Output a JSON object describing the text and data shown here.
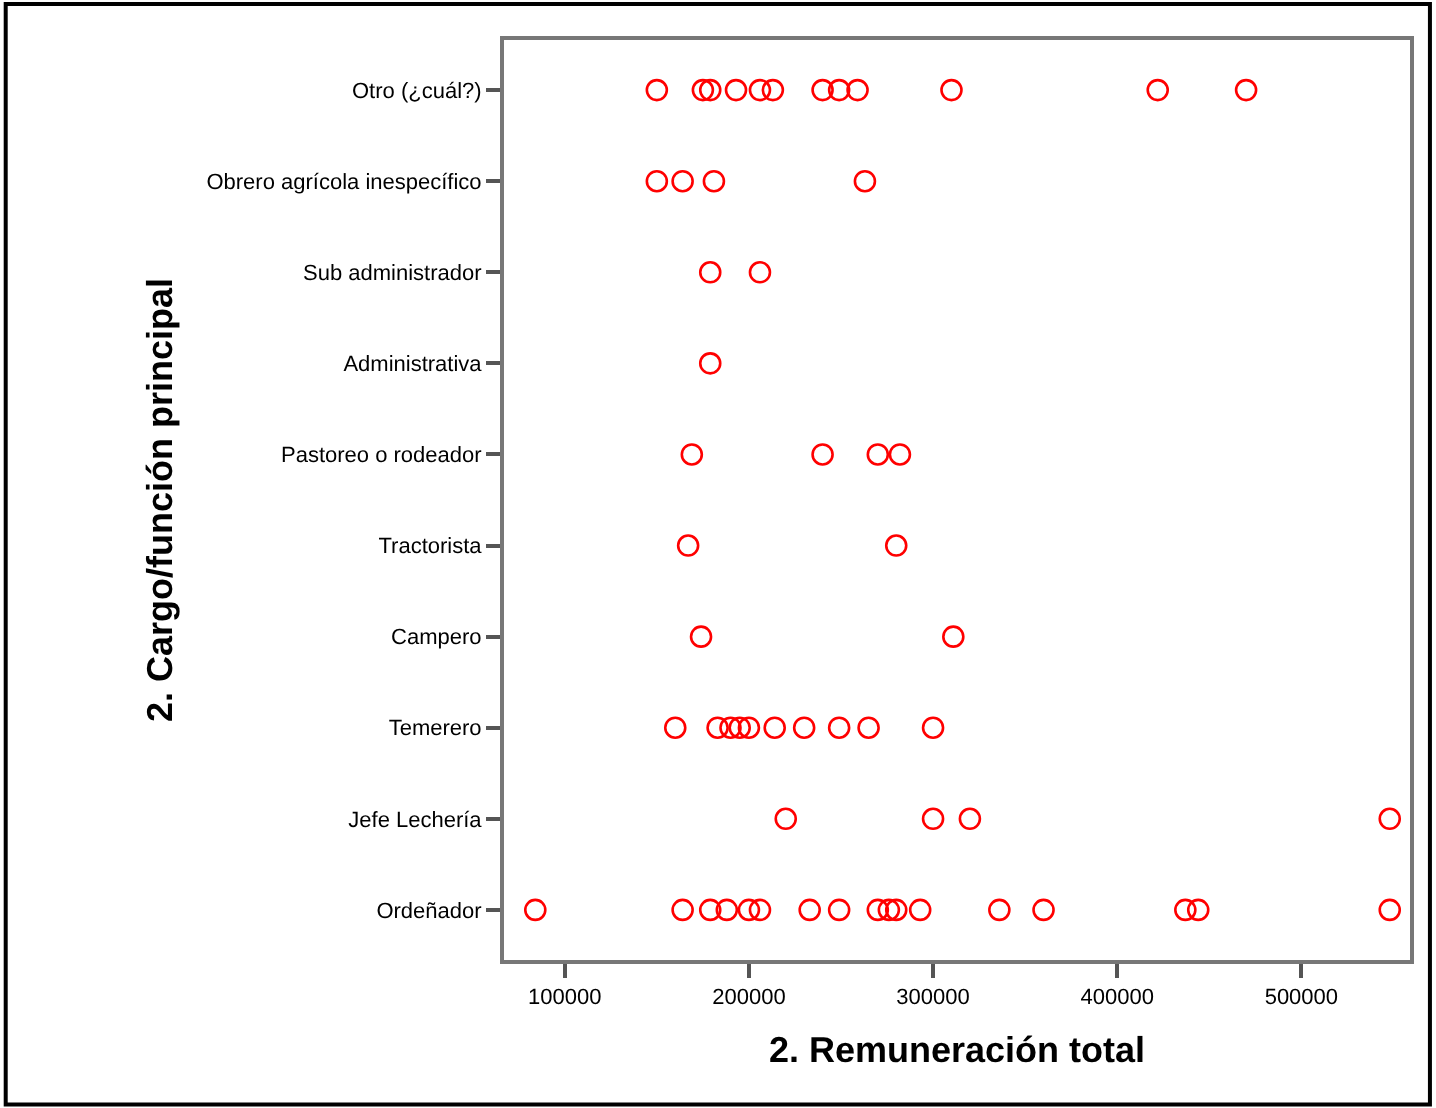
{
  "chart_data": {
    "type": "scatter",
    "orientation": "horizontal",
    "xlabel": "2. Remuneración total",
    "ylabel": "2. Cargo/función principal",
    "categories": [
      "Otro (¿cuál?)",
      "Obrero agrícola inespecífico",
      "Sub administrador",
      "Administrativa",
      "Pastoreo o rodeador",
      "Tractorista",
      "Campero",
      "Temerero",
      "Jefe Lechería",
      "Ordeñador"
    ],
    "series": [
      {
        "color": "#ff0000",
        "x": [
          "Otro (¿cuál?)",
          "Otro (¿cuál?)",
          "Otro (¿cuál?)",
          "Otro (¿cuál?)",
          "Otro (¿cuál?)",
          "Otro (¿cuál?)",
          "Otro (¿cuál?)",
          "Otro (¿cuál?)",
          "Otro (¿cuál?)",
          "Otro (¿cuál?)",
          "Otro (¿cuál?)",
          "Otro (¿cuál?)"
        ],
        "values": [
          150000,
          175000,
          179000,
          193000,
          206000,
          213000,
          240000,
          249000,
          259000,
          310000,
          422000,
          470000
        ]
      },
      {
        "color": "#ff0000",
        "x": [
          "Obrero agrícola inespecífico",
          "Obrero agrícola inespecífico",
          "Obrero agrícola inespecífico",
          "Obrero agrícola inespecífico"
        ],
        "values": [
          150000,
          164000,
          181000,
          263000
        ]
      },
      {
        "color": "#ff0000",
        "x": [
          "Sub administrador",
          "Sub administrador"
        ],
        "values": [
          179000,
          206000
        ]
      },
      {
        "color": "#ff0000",
        "x": [
          "Administrativa"
        ],
        "values": [
          179000
        ]
      },
      {
        "color": "#ff0000",
        "x": [
          "Pastoreo o rodeador",
          "Pastoreo o rodeador",
          "Pastoreo o rodeador",
          "Pastoreo o rodeador"
        ],
        "values": [
          169000,
          240000,
          270000,
          282000
        ]
      },
      {
        "color": "#ff0000",
        "x": [
          "Tractorista",
          "Tractorista"
        ],
        "values": [
          167000,
          280000
        ]
      },
      {
        "color": "#ff0000",
        "x": [
          "Campero",
          "Campero"
        ],
        "values": [
          174000,
          311000
        ]
      },
      {
        "color": "#ff0000",
        "x": [
          "Temerero",
          "Temerero",
          "Temerero",
          "Temerero",
          "Temerero",
          "Temerero",
          "Temerero",
          "Temerero",
          "Temerero",
          "Temerero"
        ],
        "values": [
          160000,
          183000,
          190000,
          195000,
          200000,
          214000,
          230000,
          249000,
          265000,
          300000
        ]
      },
      {
        "color": "#ff0000",
        "x": [
          "Jefe Lechería",
          "Jefe Lechería",
          "Jefe Lechería",
          "Jefe Lechería"
        ],
        "values": [
          220000,
          300000,
          320000,
          548000
        ]
      },
      {
        "color": "#ff0000",
        "x": [
          "Ordeñador",
          "Ordeñador",
          "Ordeñador",
          "Ordeñador",
          "Ordeñador",
          "Ordeñador",
          "Ordeñador",
          "Ordeñador",
          "Ordeñador",
          "Ordeñador",
          "Ordeñador",
          "Ordeñador",
          "Ordeñador",
          "Ordeñador",
          "Ordeñador",
          "Ordeñador",
          "Ordeñador"
        ],
        "values": [
          84000,
          164000,
          179000,
          188000,
          200000,
          206000,
          233000,
          249000,
          270000,
          276000,
          280000,
          293000,
          336000,
          360000,
          437000,
          444000,
          548000
        ]
      }
    ],
    "xlim": [
      67000,
      559000
    ],
    "xticks": [
      100000,
      200000,
      300000,
      400000,
      500000
    ],
    "marker": "circle"
  }
}
